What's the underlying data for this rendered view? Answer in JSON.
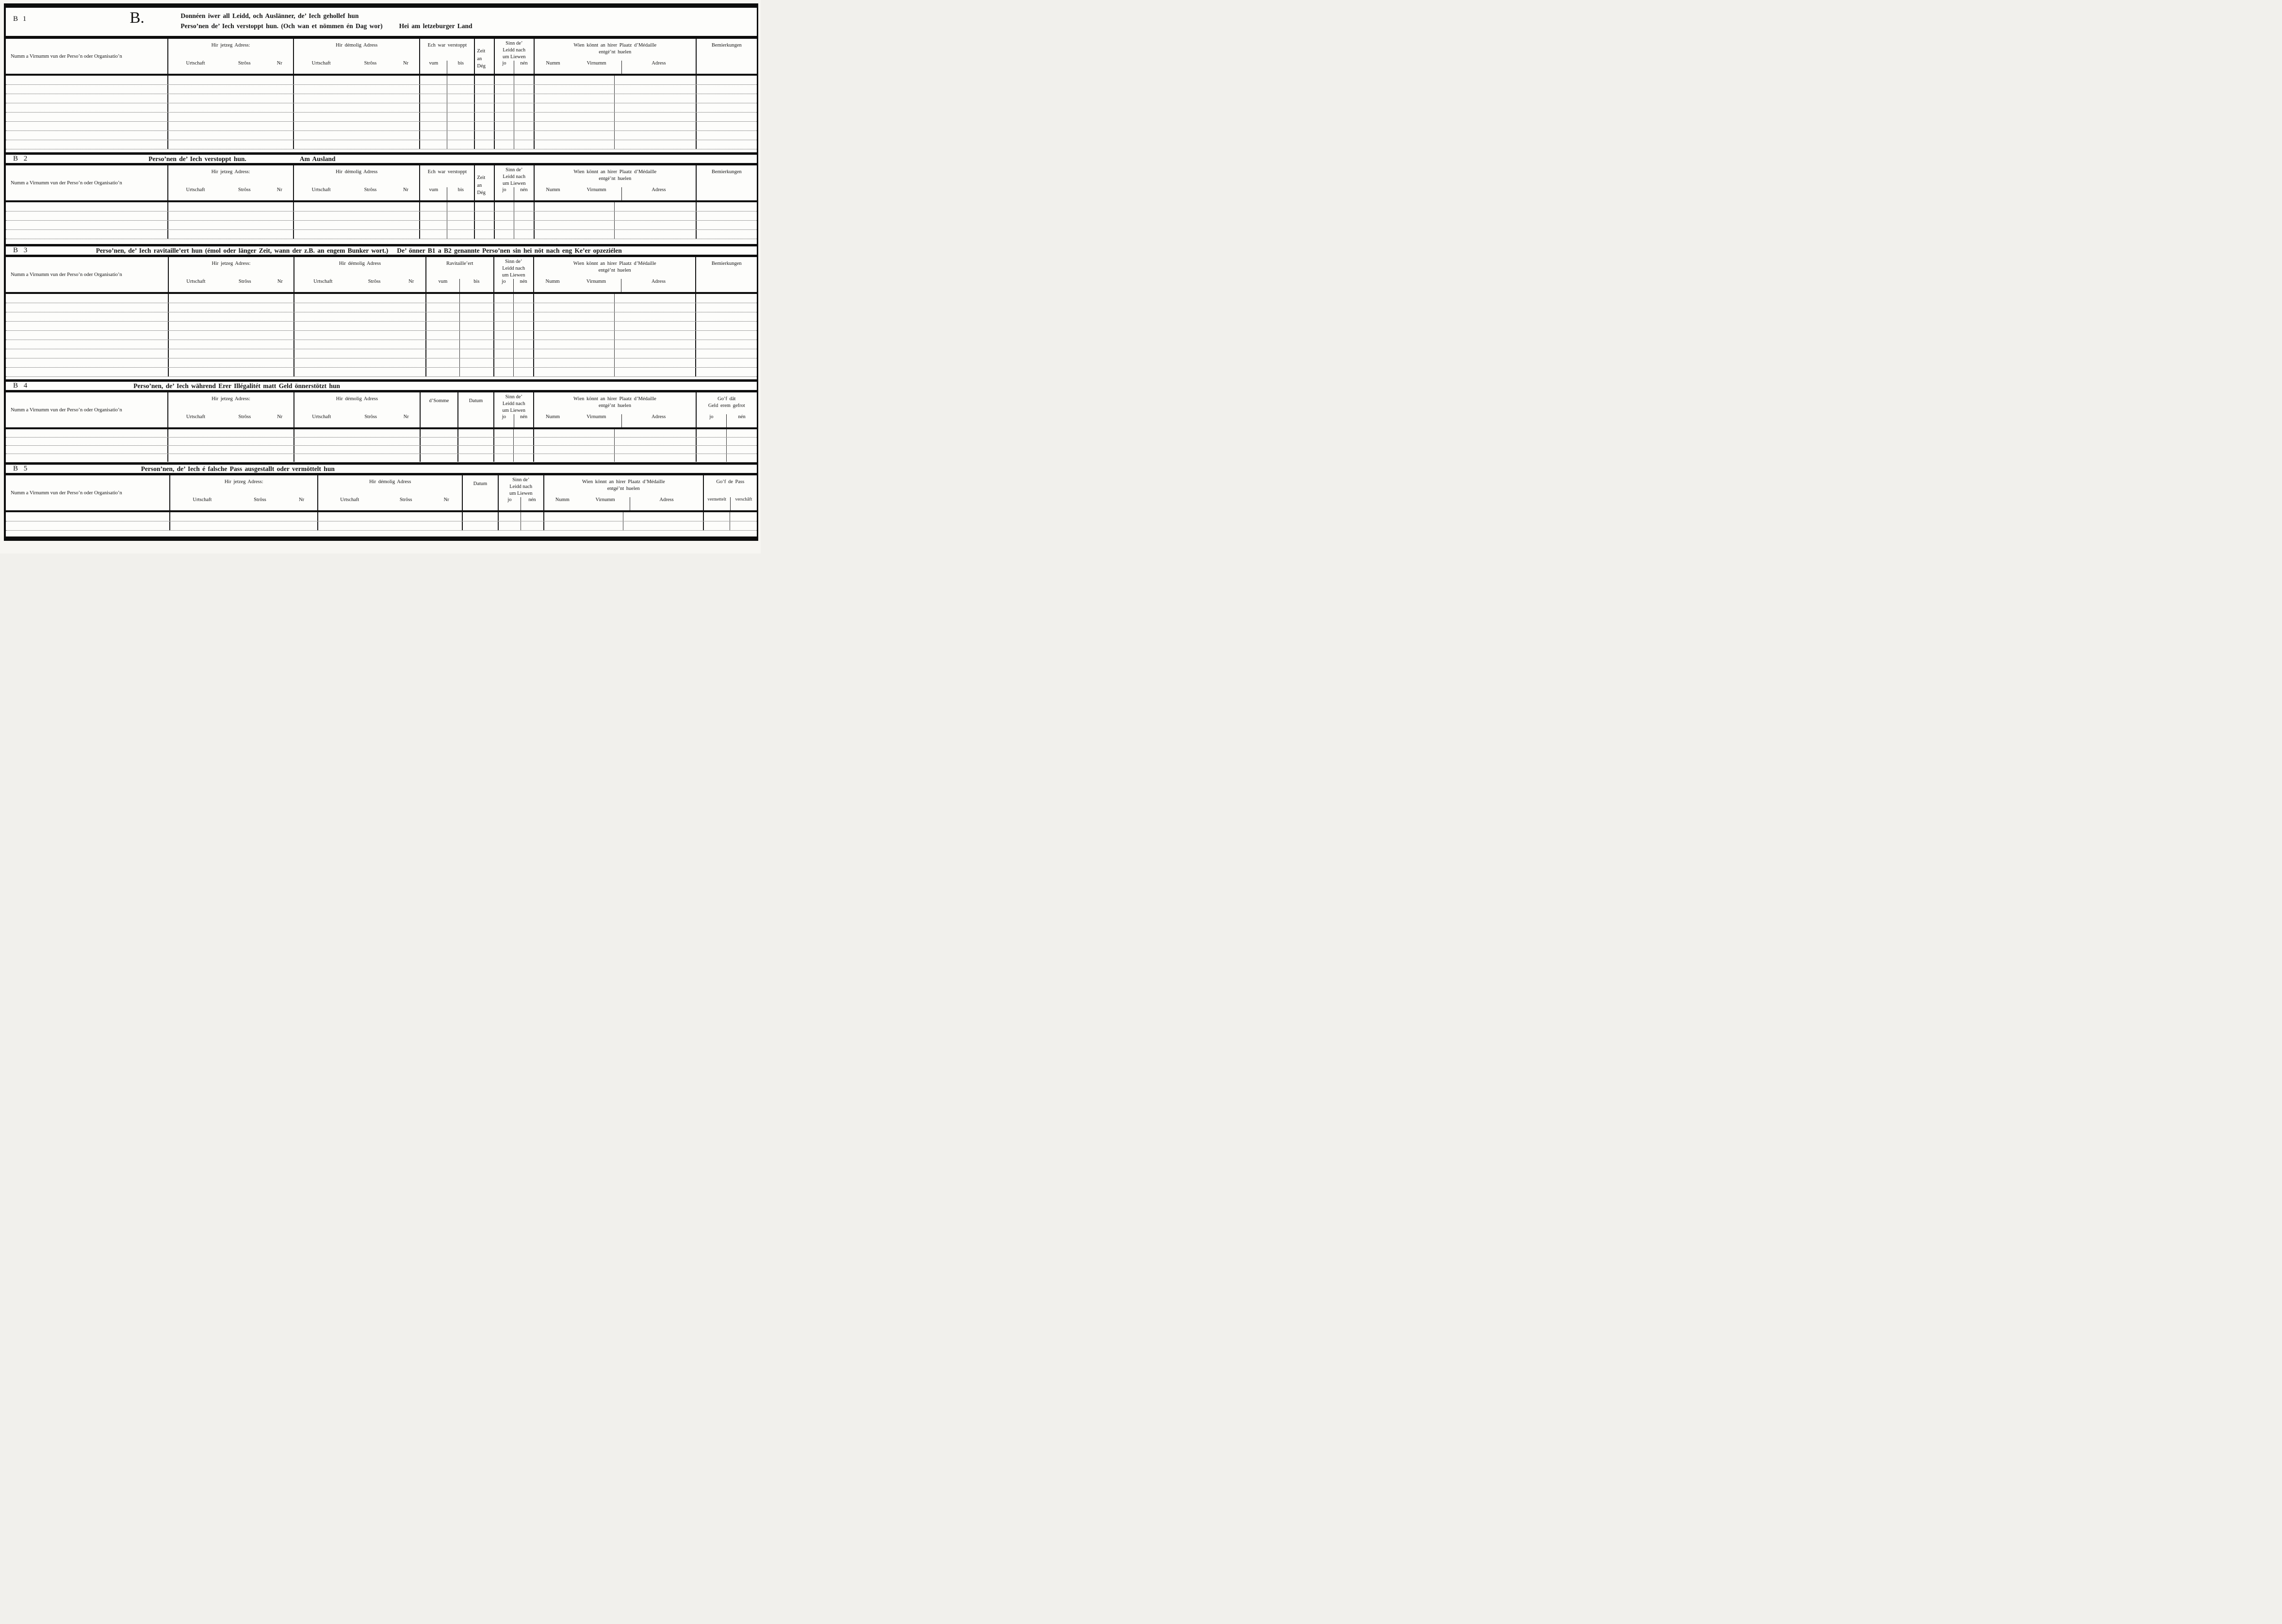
{
  "common": {
    "person_col": "Numm a Virnumm vun der Perso’n oder Organisatio’n",
    "jetzeg": "Hir jetzeg Adress:",
    "demolig": "Hir démolig Adress",
    "urtschaft": "Urtschaft",
    "stross": "Strôss",
    "nr": "Nr",
    "vum": "vum",
    "bis": "bis",
    "datum": "Datum",
    "sinn1": "Sinn de’",
    "sinn2": "Leidd nach",
    "sinn3": "um Liewen",
    "jo": "jo",
    "nen": "nén",
    "wien1": "Wien könnt an hirer Plaatz d’Médaille",
    "wien2": "entgé’nt huelen",
    "numm": "Numm",
    "virnumm": "Virnumm",
    "adress": "Adress",
    "bemierkungen": "Bemierkungen"
  },
  "b1": {
    "label": "B 1",
    "letter": "B.",
    "title1": "Donnéen iwer all Leidd, och Auslänner, de’ Iech gehollef hun",
    "title2": "Perso’nen de’ Iech verstoppt hun. (Och wan et nömmen én Dag wor)",
    "title_right": "Hei am letzeburger Land",
    "verstoppt": "Ech war verstoppt",
    "zeit1": "Zeit",
    "zeit2": "an",
    "zeit3": "Dég"
  },
  "b2": {
    "label": "B 2",
    "title": "Perso’nen de’ Iech verstoppt hun.",
    "title_right": "Am Ausland",
    "verstoppt": "Ech war verstoppt"
  },
  "b3": {
    "label": "B 3",
    "title": "Perso’nen, de’ Iech ravitaille’ert hun (émol oder länger Zeit, wann der z.B. an engem Bunker wort.)",
    "title2": "De’ önner B1 a B2 genannte Perso’nen sin hei nöt nach eng Ke’er opzeziélen",
    "ravitailleert": "Ravitaille’ert"
  },
  "b4": {
    "label": "B 4",
    "title": "Perso’nen, de’ Iech während Erer Illégalitét matt Geld önnerstötzt hun",
    "somme": "d’Somme",
    "gof1": "Go’f dât",
    "gof2": "Geld erem gefrot"
  },
  "b5": {
    "label": "B 5",
    "title": "Person’nen, de’ Iech é falsche Pass ausgestallt oder vermöttelt hun",
    "gof": "Go’f de Pass",
    "vermettelt": "vermettelt",
    "verschaft": "verschâft"
  }
}
